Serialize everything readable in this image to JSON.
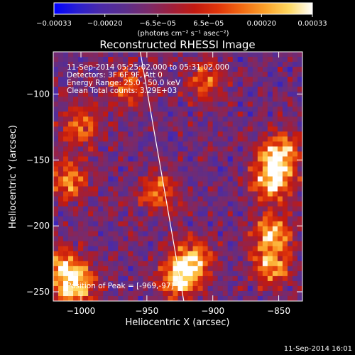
{
  "chart_data": {
    "type": "heatmap",
    "title": "Reconstructed RHESSI Image",
    "xlabel": "Heliocentric X (arcsec)",
    "ylabel": "Heliocentric Y (arcsec)",
    "xlim": [
      -1021,
      -832
    ],
    "ylim": [
      -257,
      -68
    ],
    "x_ticks": [
      -1000,
      -950,
      -900,
      -850
    ],
    "x_tick_labels": [
      "−1000",
      "−950",
      "−900",
      "−850"
    ],
    "y_ticks": [
      -100,
      -150,
      -200,
      -250
    ],
    "y_tick_labels": [
      "−100",
      "−150",
      "−200",
      "−250"
    ],
    "annotations": [
      "11-Sep-2014 05:25:02.000 to 05:31:02.000",
      "Detectors: 3F 6F 9F, Att 0",
      "Energy Range: 25.0 - 50.0 keV",
      "Clean    Total counts: 3.29E+03"
    ],
    "peak_label": "Position of Peak = [-969,-97]",
    "peak_position": [
      -969,
      -97
    ],
    "limb_line": [
      [
        -955,
        -68
      ],
      [
        -922,
        -257
      ]
    ],
    "colorbar": {
      "range": [
        -0.00033,
        0.00033
      ],
      "tick_values": [
        -0.00033,
        -0.0002,
        -6.5e-05,
        6.5e-05,
        0.0002,
        0.00033
      ],
      "tick_labels": [
        "−0.00033",
        "−0.00020",
        "−6.5e−05",
        "6.5e−05",
        "0.00020",
        "0.00033"
      ],
      "unit_label": "(photons cm⁻² s⁻¹ asec⁻²)",
      "colors": [
        "#0000ff",
        "#2a1fd0",
        "#4b2aa8",
        "#5a2e8c",
        "#7a2a6a",
        "#9e1f3c",
        "#c21a10",
        "#e0360a",
        "#f26a12",
        "#fba22a",
        "#ffd860",
        "#ffffff"
      ]
    },
    "bright_sources": [
      {
        "x": -855,
        "y": -165,
        "strength": 0.95
      },
      {
        "x": -850,
        "y": -145,
        "strength": 0.8
      },
      {
        "x": -855,
        "y": -205,
        "strength": 0.7
      },
      {
        "x": -855,
        "y": -230,
        "strength": 0.7
      },
      {
        "x": -925,
        "y": -240,
        "strength": 0.9
      },
      {
        "x": -915,
        "y": -225,
        "strength": 0.7
      },
      {
        "x": -1005,
        "y": -245,
        "strength": 0.9
      },
      {
        "x": -1015,
        "y": -230,
        "strength": 0.6
      },
      {
        "x": -1010,
        "y": -165,
        "strength": 0.6
      },
      {
        "x": -1000,
        "y": -125,
        "strength": 0.55
      },
      {
        "x": -940,
        "y": -175,
        "strength": 0.55
      },
      {
        "x": -965,
        "y": -95,
        "strength": 0.5
      },
      {
        "x": -905,
        "y": -90,
        "strength": 0.5
      }
    ]
  },
  "footer": {
    "timestamp": "11-Sep-2014 16:01"
  }
}
